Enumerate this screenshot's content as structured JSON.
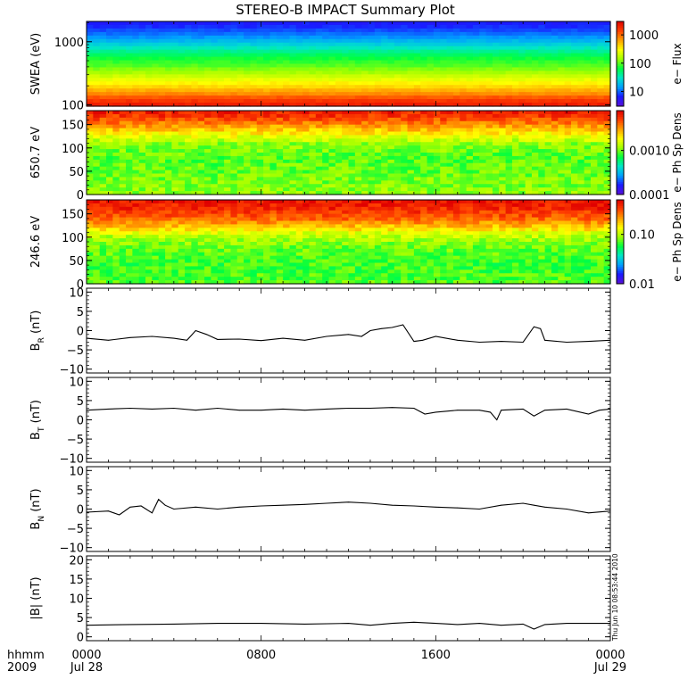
{
  "title": "STEREO-B IMPACT Summary Plot",
  "timestamp": "Thu Jun 10 08:53:44 2010",
  "time_axis": {
    "corner_top": "hhmm",
    "corner_bottom": "2009",
    "ticks": [
      {
        "hour": 0,
        "top": "0000",
        "bottom": "Jul 28"
      },
      {
        "hour": 8,
        "top": "0800",
        "bottom": ""
      },
      {
        "hour": 16,
        "top": "1600",
        "bottom": ""
      },
      {
        "hour": 24,
        "top": "0000",
        "bottom": "Jul 29"
      }
    ]
  },
  "colors": {
    "colormap": [
      "#5a10d8",
      "#1a1aff",
      "#00a0ff",
      "#00e6c8",
      "#00ff40",
      "#a0ff00",
      "#ffff00",
      "#ffa000",
      "#ff4000",
      "#e00000"
    ]
  },
  "chart_data": [
    {
      "type": "heatmap",
      "id": "swea",
      "ylabel": "SWEA (eV)",
      "yscale": "log",
      "ylim": [
        95,
        2100
      ],
      "yticks": [
        {
          "v": 100,
          "t": "100"
        },
        {
          "v": 1000,
          "t": "1000"
        }
      ],
      "colorbar": {
        "label": "e− Flux",
        "scale": "log",
        "range": [
          3,
          3000
        ],
        "ticks": [
          {
            "v": 10,
            "t": "10"
          },
          {
            "v": 100,
            "t": "100"
          },
          {
            "v": 1000,
            "t": "1000"
          }
        ]
      },
      "profile": {
        "y": [
          95,
          120,
          150,
          200,
          260,
          330,
          420,
          550,
          700,
          900,
          1150,
          1450,
          1800,
          2100
        ],
        "color_fraction": [
          0.96,
          0.9,
          0.8,
          0.7,
          0.63,
          0.56,
          0.5,
          0.45,
          0.38,
          0.3,
          0.22,
          0.16,
          0.12,
          0.1
        ]
      }
    },
    {
      "type": "heatmap",
      "id": "pad650",
      "ylabel": "650.7 eV",
      "ylim": [
        0,
        180
      ],
      "yticks": [
        {
          "v": 0,
          "t": "0"
        },
        {
          "v": 50,
          "t": "50"
        },
        {
          "v": 100,
          "t": "100"
        },
        {
          "v": 150,
          "t": "150"
        }
      ],
      "colorbar": {
        "label": "e− Ph Sp Dens",
        "scale": "log",
        "range": [
          0.0001,
          0.008
        ],
        "ticks": [
          {
            "v": 0.0001,
            "t": "0.0001"
          },
          {
            "v": 0.001,
            "t": "0.0010"
          }
        ]
      },
      "profile": {
        "y": [
          0,
          40,
          80,
          110,
          130,
          150,
          165,
          180
        ],
        "color_fraction": [
          0.55,
          0.52,
          0.5,
          0.55,
          0.68,
          0.8,
          0.9,
          0.95
        ]
      }
    },
    {
      "type": "heatmap",
      "id": "pad246",
      "ylabel": "246.6 eV",
      "ylim": [
        0,
        180
      ],
      "yticks": [
        {
          "v": 0,
          "t": "0"
        },
        {
          "v": 50,
          "t": "50"
        },
        {
          "v": 100,
          "t": "100"
        },
        {
          "v": 150,
          "t": "150"
        }
      ],
      "colorbar": {
        "label": "e− Ph Sp Dens",
        "scale": "log",
        "range": [
          0.01,
          0.5
        ],
        "ticks": [
          {
            "v": 0.01,
            "t": "0.01"
          },
          {
            "v": 0.1,
            "t": "0.10"
          }
        ]
      },
      "profile": {
        "y": [
          0,
          40,
          80,
          105,
          120,
          140,
          160,
          180
        ],
        "color_fraction": [
          0.5,
          0.48,
          0.52,
          0.6,
          0.72,
          0.85,
          0.93,
          0.97
        ]
      }
    },
    {
      "type": "line",
      "id": "br",
      "ylabel": "B_R (nT)",
      "ylim": [
        -11,
        11
      ],
      "yticks": [
        {
          "v": -10,
          "t": "−10"
        },
        {
          "v": -5,
          "t": "−5"
        },
        {
          "v": 0,
          "t": "0"
        },
        {
          "v": 5,
          "t": "5"
        },
        {
          "v": 10,
          "t": "10"
        }
      ],
      "x": [
        0,
        1,
        2,
        3,
        4,
        4.6,
        5,
        5.5,
        6,
        7,
        8,
        9,
        10,
        11,
        12,
        12.6,
        13,
        13.5,
        14,
        14.5,
        15,
        15.4,
        16,
        17,
        18,
        19,
        20,
        20.5,
        20.8,
        21,
        22,
        23,
        24
      ],
      "y": [
        -2,
        -2.5,
        -1.8,
        -1.5,
        -2,
        -2.5,
        0,
        -1,
        -2.3,
        -2.2,
        -2.6,
        -2,
        -2.5,
        -1.5,
        -1,
        -1.5,
        0,
        0.5,
        0.8,
        1.5,
        -2.8,
        -2.5,
        -1.5,
        -2.5,
        -3,
        -2.8,
        -3,
        1,
        0.5,
        -2.5,
        -3,
        -2.8,
        -2.5
      ]
    },
    {
      "type": "line",
      "id": "bt",
      "ylabel": "B_T (nT)",
      "ylim": [
        -11,
        11
      ],
      "yticks": [
        {
          "v": -10,
          "t": "−10"
        },
        {
          "v": -5,
          "t": "−5"
        },
        {
          "v": 0,
          "t": "0"
        },
        {
          "v": 5,
          "t": "5"
        },
        {
          "v": 10,
          "t": "10"
        }
      ],
      "x": [
        0,
        1,
        2,
        3,
        4,
        5,
        6,
        7,
        8,
        9,
        10,
        11,
        12,
        13,
        14,
        15,
        15.5,
        16,
        17,
        18,
        18.5,
        18.8,
        19,
        20,
        20.5,
        21,
        22,
        23,
        23.5,
        24
      ],
      "y": [
        2.5,
        2.8,
        3,
        2.8,
        3,
        2.5,
        3,
        2.5,
        2.5,
        2.8,
        2.5,
        2.8,
        3,
        3,
        3.2,
        3,
        1.5,
        2,
        2.5,
        2.5,
        2,
        0,
        2.5,
        2.8,
        1,
        2.5,
        2.8,
        1.5,
        2.5,
        2.8
      ]
    },
    {
      "type": "line",
      "id": "bn",
      "ylabel": "B_N (nT)",
      "ylim": [
        -11,
        11
      ],
      "yticks": [
        {
          "v": -10,
          "t": "−10"
        },
        {
          "v": -5,
          "t": "−5"
        },
        {
          "v": 0,
          "t": "0"
        },
        {
          "v": 5,
          "t": "5"
        },
        {
          "v": 10,
          "t": "10"
        }
      ],
      "x": [
        0,
        1,
        1.5,
        2,
        2.5,
        3,
        3.3,
        3.6,
        4,
        5,
        6,
        7,
        8,
        9,
        10,
        11,
        12,
        13,
        14,
        15,
        16,
        17,
        18,
        19,
        20,
        20.5,
        21,
        22,
        23,
        24
      ],
      "y": [
        -0.8,
        -0.5,
        -1.5,
        0.5,
        0.8,
        -1,
        2.5,
        1,
        0,
        0.5,
        0,
        0.5,
        0.8,
        1,
        1.2,
        1.5,
        1.8,
        1.5,
        1,
        0.8,
        0.5,
        0.3,
        0,
        1,
        1.5,
        1,
        0.5,
        0,
        -1,
        -0.5
      ]
    },
    {
      "type": "line",
      "id": "bmag",
      "ylabel": "|B| (nT)",
      "ylim": [
        -1,
        21
      ],
      "yticks": [
        {
          "v": 0,
          "t": "0"
        },
        {
          "v": 5,
          "t": "5"
        },
        {
          "v": 10,
          "t": "10"
        },
        {
          "v": 15,
          "t": "15"
        },
        {
          "v": 20,
          "t": "20"
        }
      ],
      "x": [
        0,
        2,
        4,
        6,
        8,
        10,
        12,
        13,
        14,
        15,
        16,
        17,
        18,
        19,
        20,
        20.5,
        21,
        22,
        23,
        24
      ],
      "y": [
        3,
        3.2,
        3.3,
        3.5,
        3.5,
        3.3,
        3.5,
        3,
        3.5,
        3.8,
        3.5,
        3.2,
        3.5,
        3,
        3.3,
        2,
        3.2,
        3.5,
        3.5,
        3.5
      ]
    }
  ]
}
